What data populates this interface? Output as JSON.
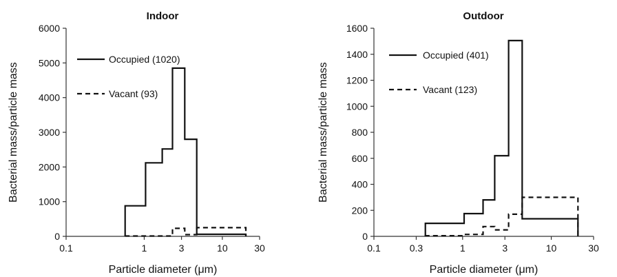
{
  "chart_data": [
    {
      "type": "line",
      "title": "Indoor",
      "xlabel": "Particle diameter (μm)",
      "ylabel": "Bacterial mass/particle mass",
      "xscale": "log",
      "xlim": [
        0.1,
        30
      ],
      "ylim": [
        0,
        6000
      ],
      "xticks": [
        "0.1",
        "1",
        "3",
        "10",
        "30"
      ],
      "xtick_values": [
        0.1,
        1,
        3,
        10,
        30
      ],
      "yticks": [
        "0",
        "1000",
        "2000",
        "3000",
        "4000",
        "5000",
        "6000"
      ],
      "ytick_values": [
        0,
        1000,
        2000,
        3000,
        4000,
        5000,
        6000
      ],
      "legend_position": "top-left",
      "series": [
        {
          "name": "Occupied (1020)",
          "style": "solid",
          "bins": [
            0.57,
            1.04,
            1.7,
            2.3,
            3.3,
            4.7,
            9.0,
            20.0
          ],
          "values": [
            880,
            2120,
            2520,
            4850,
            2800,
            60,
            60
          ]
        },
        {
          "name": "Vacant (93)",
          "style": "dashed",
          "bins": [
            0.57,
            1.04,
            1.7,
            2.3,
            3.3,
            4.7,
            9.0,
            20.0
          ],
          "values": [
            10,
            10,
            10,
            230,
            50,
            250,
            250
          ]
        }
      ]
    },
    {
      "type": "line",
      "title": "Outdoor",
      "xlabel": "Particle diameter (μm)",
      "ylabel": "Bacterial mass/particle mass",
      "xscale": "log",
      "xlim": [
        0.1,
        30
      ],
      "ylim": [
        0,
        1600
      ],
      "xticks": [
        "0.1",
        "0.3",
        "1",
        "3",
        "10",
        "30"
      ],
      "xtick_values": [
        0.1,
        0.3,
        1,
        3,
        10,
        30
      ],
      "yticks": [
        "0",
        "200",
        "400",
        "600",
        "800",
        "1000",
        "1200",
        "1400",
        "1600"
      ],
      "ytick_values": [
        0,
        200,
        400,
        600,
        800,
        1000,
        1200,
        1400,
        1600
      ],
      "legend_position": "top-left",
      "series": [
        {
          "name": "Occupied (401)",
          "style": "solid",
          "bins": [
            0.38,
            1.04,
            1.7,
            2.3,
            3.3,
            4.7,
            8.0,
            20.0
          ],
          "values": [
            100,
            175,
            280,
            620,
            1505,
            135,
            135
          ]
        },
        {
          "name": "Vacant (123)",
          "style": "dashed",
          "bins": [
            0.38,
            1.04,
            1.7,
            2.3,
            3.3,
            4.7,
            8.0,
            20.0
          ],
          "values": [
            5,
            15,
            75,
            50,
            170,
            300,
            300
          ]
        }
      ]
    }
  ]
}
